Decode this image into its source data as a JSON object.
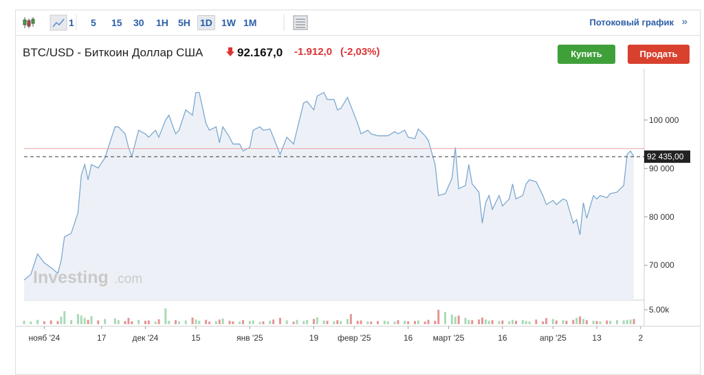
{
  "toolbar": {
    "intervals": [
      "1",
      "5",
      "15",
      "30",
      "1H",
      "5H",
      "1D",
      "1W",
      "1M"
    ],
    "active": "1D",
    "stream_link": "Потоковый график",
    "stream_arrow": "»"
  },
  "header": {
    "instrument": "BTC/USD - Биткоин Доллар США",
    "price": "92.167,0",
    "change": "-1.912,0",
    "change_pct": "(-2,03%)",
    "buy": "Купить",
    "sell": "Продать"
  },
  "watermark": {
    "brand": "Investing",
    "suffix": ".com"
  },
  "chart_data": {
    "type": "area",
    "line_color": "#7ba7cf",
    "fill_color": "#edf1f7",
    "x": [
      0,
      2,
      4,
      6,
      8,
      10,
      11,
      12,
      14,
      16,
      17,
      18,
      19,
      20,
      22,
      24,
      27,
      28,
      30,
      31,
      32,
      34,
      36,
      37,
      39,
      40,
      42,
      43,
      45,
      46,
      48,
      50,
      51,
      52,
      54,
      55,
      57,
      58,
      59,
      61,
      62,
      64,
      65,
      67,
      68,
      70,
      71,
      73,
      74,
      76,
      78,
      80,
      81,
      83,
      84,
      86,
      87,
      89,
      90,
      92,
      93,
      94,
      96,
      97,
      99,
      100,
      102,
      103,
      105,
      107,
      108,
      110,
      111,
      113,
      114,
      116,
      117,
      119,
      120,
      122,
      123,
      125,
      127,
      128,
      129,
      131,
      132,
      133,
      135,
      136,
      137,
      138,
      139,
      141,
      142,
      144,
      145,
      146,
      148,
      149,
      150,
      152,
      154,
      155,
      157,
      158,
      160,
      161,
      163,
      164,
      165,
      166,
      167,
      169,
      170,
      171,
      173,
      174,
      176,
      178,
      179,
      180,
      181
    ],
    "values": [
      66950,
      68100,
      72350,
      70500,
      69500,
      68350,
      70900,
      75900,
      76600,
      80850,
      88650,
      90800,
      87650,
      90800,
      90100,
      92200,
      98600,
      98600,
      97150,
      94350,
      92500,
      97900,
      97150,
      96450,
      97900,
      96450,
      100000,
      101000,
      97150,
      97900,
      102100,
      101000,
      105700,
      105700,
      99300,
      97900,
      98600,
      95300,
      98600,
      96450,
      95050,
      95050,
      93600,
      94350,
      97900,
      98600,
      97900,
      98150,
      96450,
      92900,
      96450,
      95050,
      97900,
      103550,
      103850,
      102100,
      104950,
      105700,
      104250,
      104250,
      102100,
      102400,
      104700,
      102850,
      99300,
      97150,
      97900,
      97150,
      96750,
      96750,
      96750,
      97600,
      97150,
      97900,
      96450,
      96150,
      98150,
      96750,
      95750,
      90800,
      84400,
      84800,
      87950,
      94350,
      85800,
      86500,
      90800,
      86800,
      85100,
      78700,
      82950,
      84400,
      81550,
      84400,
      82250,
      83700,
      86800,
      83700,
      84400,
      86800,
      87650,
      87250,
      84400,
      82550,
      83400,
      82550,
      83700,
      83400,
      78700,
      79450,
      76300,
      82950,
      79700,
      84400,
      83700,
      84400,
      83950,
      84800,
      85100,
      86500,
      92900,
      93600,
      92435
    ],
    "volume": [
      1200,
      900,
      1500,
      1000,
      1300,
      1100,
      2600,
      4500,
      1400,
      3500,
      3000,
      2200,
      1500,
      2800,
      1300,
      1800,
      2000,
      1400,
      1100,
      2200,
      1000,
      1500,
      1200,
      1300,
      900,
      1700,
      5500,
      1200,
      1400,
      1000,
      1300,
      2300,
      1600,
      1200,
      1500,
      900,
      1100,
      1600,
      2000,
      1200,
      1000,
      900,
      1400,
      1100,
      1300,
      800,
      1000,
      1200,
      1600,
      2200,
      1300,
      900,
      1500,
      1100,
      1400,
      1800,
      2400,
      1300,
      1200,
      1000,
      1400,
      1100,
      1800,
      3500,
      1200,
      1300,
      1000,
      900,
      1100,
      1200,
      1000,
      900,
      1400,
      1200,
      1000,
      1100,
      1300,
      900,
      1500,
      1200,
      5000,
      4200,
      3300,
      2600,
      3000,
      2200,
      1500,
      1400,
      1600,
      2300,
      1600,
      1200,
      1400,
      1100,
      1300,
      1000,
      1500,
      1200,
      1400,
      1100,
      900,
      1600,
      1000,
      2100,
      1800,
      1300,
      1400,
      1200,
      1500,
      2200,
      2700,
      1800,
      1400,
      1200,
      1100,
      1000,
      1300,
      1200,
      1400,
      1300,
      1500,
      1600,
      1800
    ],
    "up_color": "#a8dab5",
    "down_color": "#e69494",
    "xlim": [
      0,
      181
    ],
    "xticks": [
      {
        "value": 6,
        "label": "нояб '24"
      },
      {
        "value": 23,
        "label": "17"
      },
      {
        "value": 36,
        "label": "дек '24"
      },
      {
        "value": 51,
        "label": "15"
      },
      {
        "value": 67,
        "label": "янв '25"
      },
      {
        "value": 86,
        "label": "19"
      },
      {
        "value": 98,
        "label": "февр '25"
      },
      {
        "value": 114,
        "label": "16"
      },
      {
        "value": 126,
        "label": "март '25"
      },
      {
        "value": 142,
        "label": "16"
      },
      {
        "value": 157,
        "label": "апр '25"
      },
      {
        "value": 170,
        "label": "13"
      },
      {
        "value": 183,
        "label": "2"
      }
    ],
    "ylim": [
      62800,
      109900
    ],
    "yticks": [
      {
        "value": 70000,
        "label": "70 000"
      },
      {
        "value": 80000,
        "label": "80 000"
      },
      {
        "value": 90000,
        "label": "90 000"
      },
      {
        "value": 100000,
        "label": "100 000"
      }
    ],
    "reference_line": 94100,
    "reference_color": "#e9a3a0",
    "last_price": {
      "value": 92435,
      "label": "92 435,00"
    },
    "volume_ylim": [
      0,
      6200
    ],
    "volume_ticks": [
      {
        "value": 5000,
        "label": "5.00k"
      }
    ]
  }
}
